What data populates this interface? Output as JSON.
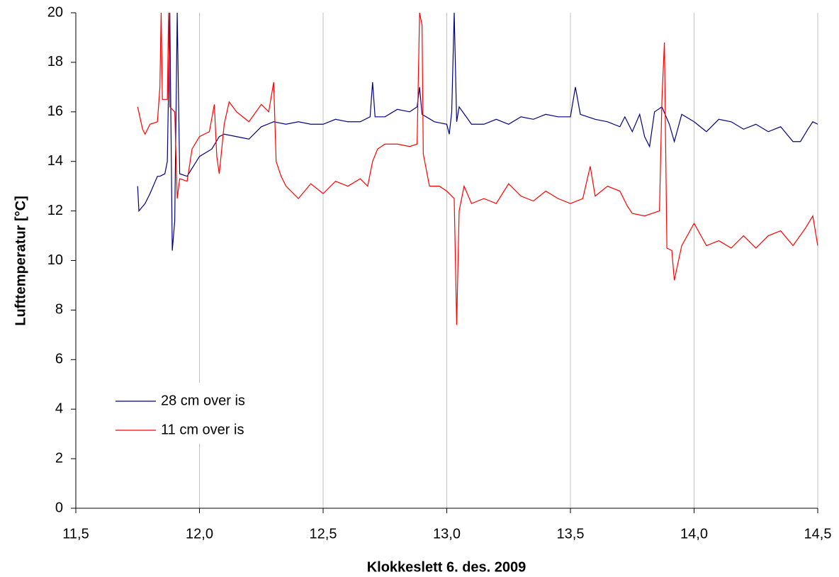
{
  "chart_data": {
    "type": "line",
    "xlabel": "Klokkeslett 6. des. 2009",
    "ylabel": "Lufttemperatur  [°C]",
    "xlim": [
      11.5,
      14.5
    ],
    "xticks": [
      {
        "value": 11.5,
        "label": "11,5"
      },
      {
        "value": 12.0,
        "label": "12,0"
      },
      {
        "value": 12.5,
        "label": "12,5"
      },
      {
        "value": 13.0,
        "label": "13,0"
      },
      {
        "value": 13.5,
        "label": "13,5"
      },
      {
        "value": 14.0,
        "label": "14,0"
      },
      {
        "value": 14.5,
        "label": "14,5"
      }
    ],
    "ylim": [
      0,
      20
    ],
    "yticks": [
      0,
      2,
      4,
      6,
      8,
      10,
      12,
      14,
      16,
      18,
      20
    ],
    "grid": "x",
    "legend": "left",
    "series": [
      {
        "name": "28 cm over is",
        "color": "#000080",
        "x": [
          11.75,
          11.755,
          11.78,
          11.8,
          11.83,
          11.84,
          11.86,
          11.87,
          11.88,
          11.89,
          11.9,
          11.91,
          11.92,
          11.95,
          12.0,
          12.05,
          12.08,
          12.1,
          12.15,
          12.2,
          12.25,
          12.3,
          12.35,
          12.4,
          12.45,
          12.5,
          12.55,
          12.6,
          12.65,
          12.69,
          12.7,
          12.71,
          12.75,
          12.8,
          12.85,
          12.88,
          12.89,
          12.9,
          12.95,
          13.0,
          13.01,
          13.02,
          13.03,
          13.04,
          13.05,
          13.1,
          13.15,
          13.2,
          13.25,
          13.3,
          13.35,
          13.4,
          13.45,
          13.5,
          13.52,
          13.54,
          13.6,
          13.65,
          13.7,
          13.72,
          13.75,
          13.78,
          13.8,
          13.82,
          13.84,
          13.87,
          13.9,
          13.92,
          13.95,
          14.0,
          14.05,
          14.1,
          14.15,
          14.2,
          14.25,
          14.3,
          14.35,
          14.4,
          14.43,
          14.46,
          14.48,
          14.5
        ],
        "values": [
          13.0,
          12.0,
          12.3,
          12.7,
          13.4,
          13.4,
          13.5,
          14.0,
          20,
          10.4,
          11.6,
          20,
          13.5,
          13.4,
          14.2,
          14.5,
          15.0,
          15.1,
          15.0,
          14.9,
          15.4,
          15.6,
          15.5,
          15.6,
          15.5,
          15.5,
          15.7,
          15.6,
          15.6,
          15.8,
          17.2,
          15.8,
          15.8,
          16.1,
          16.0,
          16.2,
          17.0,
          15.9,
          15.6,
          15.5,
          15.1,
          16.0,
          20,
          15.6,
          16.2,
          15.5,
          15.5,
          15.7,
          15.5,
          15.8,
          15.7,
          15.9,
          15.8,
          15.8,
          17.0,
          15.9,
          15.7,
          15.6,
          15.4,
          15.8,
          15.2,
          15.9,
          15.0,
          14.6,
          16.0,
          16.2,
          15.5,
          14.8,
          15.9,
          15.6,
          15.2,
          15.7,
          15.6,
          15.3,
          15.5,
          15.2,
          15.4,
          14.8,
          14.8,
          15.3,
          15.6,
          15.5
        ]
      },
      {
        "name": "11 cm over is",
        "color": "#ff0000",
        "x": [
          11.75,
          11.77,
          11.78,
          11.8,
          11.83,
          11.84,
          11.845,
          11.85,
          11.87,
          11.875,
          11.88,
          11.9,
          11.91,
          11.92,
          11.95,
          11.97,
          12.0,
          12.04,
          12.06,
          12.07,
          12.08,
          12.1,
          12.12,
          12.15,
          12.2,
          12.25,
          12.28,
          12.3,
          12.31,
          12.33,
          12.35,
          12.4,
          12.45,
          12.5,
          12.55,
          12.6,
          12.65,
          12.68,
          12.7,
          12.72,
          12.75,
          12.8,
          12.85,
          12.88,
          12.89,
          12.9,
          12.905,
          12.93,
          12.97,
          13.0,
          13.03,
          13.04,
          13.05,
          13.07,
          13.1,
          13.15,
          13.2,
          13.25,
          13.3,
          13.35,
          13.4,
          13.45,
          13.5,
          13.55,
          13.58,
          13.6,
          13.65,
          13.7,
          13.73,
          13.75,
          13.8,
          13.86,
          13.87,
          13.88,
          13.89,
          13.91,
          13.92,
          13.95,
          14.0,
          14.05,
          14.1,
          14.15,
          14.2,
          14.25,
          14.3,
          14.35,
          14.4,
          14.45,
          14.48,
          14.5
        ],
        "values": [
          16.2,
          15.3,
          15.1,
          15.5,
          15.6,
          17.0,
          20,
          16.5,
          16.5,
          20,
          16.2,
          16.0,
          12.5,
          13.3,
          13.2,
          14.5,
          15.0,
          15.2,
          16.3,
          14.2,
          13.5,
          15.5,
          16.4,
          16.0,
          15.6,
          16.3,
          16.0,
          17.2,
          14.0,
          13.4,
          13.0,
          12.5,
          13.1,
          12.7,
          13.2,
          13.0,
          13.3,
          13.0,
          14.0,
          14.5,
          14.7,
          14.7,
          14.6,
          14.7,
          20,
          19.5,
          14.3,
          13.0,
          13.0,
          12.8,
          12.5,
          7.4,
          12.0,
          13.0,
          12.3,
          12.5,
          12.3,
          13.1,
          12.6,
          12.4,
          12.8,
          12.5,
          12.3,
          12.5,
          13.8,
          12.6,
          13.0,
          12.8,
          12.2,
          11.9,
          11.8,
          12.0,
          16.5,
          18.8,
          10.5,
          10.4,
          9.2,
          10.6,
          11.5,
          10.6,
          10.8,
          10.5,
          11.0,
          10.5,
          11.0,
          11.2,
          10.6,
          11.3,
          11.8,
          10.6
        ]
      }
    ]
  }
}
